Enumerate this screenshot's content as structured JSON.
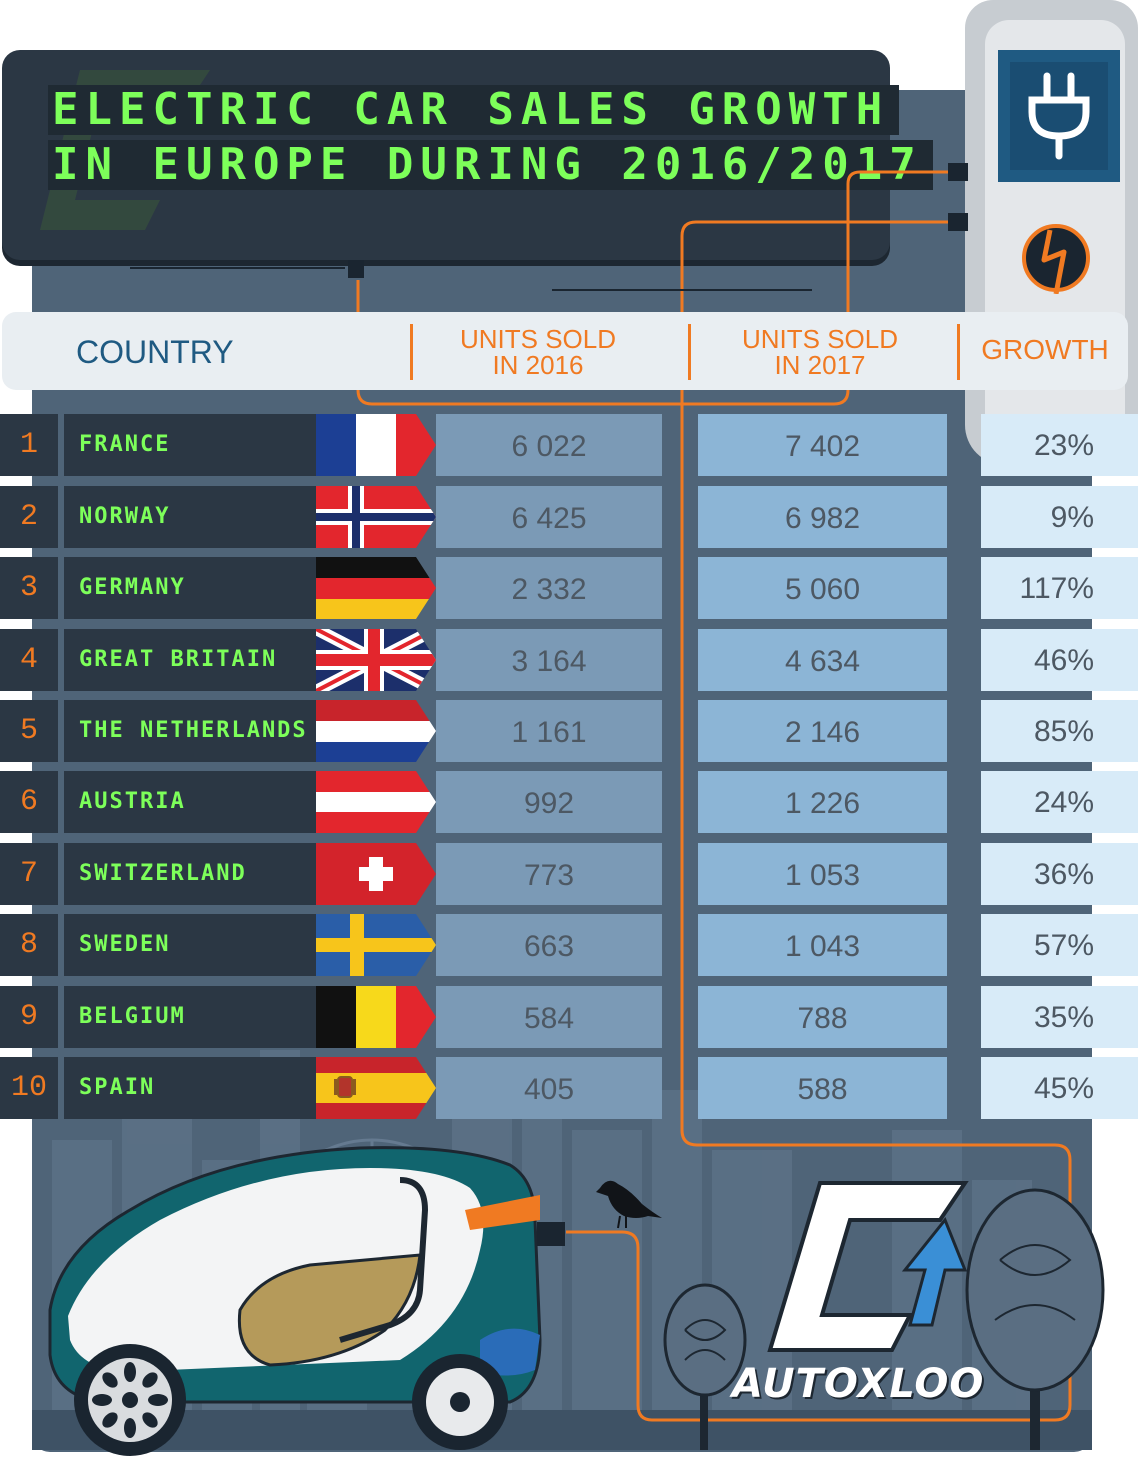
{
  "title": {
    "line1": "ELECTRIC CAR SALES GROWTH",
    "line2": "IN EUROPE DURING 2016/2017"
  },
  "headers": {
    "country": "COUNTRY",
    "units_2016": "UNITS SOLD\nIN 2016",
    "units_2017": "UNITS SOLD\nIN 2017",
    "growth": "GROWTH"
  },
  "rows": [
    {
      "rank": "1",
      "country": "FRANCE",
      "units_2016": "6 022",
      "units_2017": "7 402",
      "growth": "23%",
      "flag": "france-flag"
    },
    {
      "rank": "2",
      "country": "NORWAY",
      "units_2016": "6 425",
      "units_2017": "6 982",
      "growth": "9%",
      "flag": "norway-flag"
    },
    {
      "rank": "3",
      "country": "GERMANY",
      "units_2016": "2 332",
      "units_2017": "5 060",
      "growth": "117%",
      "flag": "germany-flag"
    },
    {
      "rank": "4",
      "country": "GREAT BRITAIN",
      "units_2016": "3 164",
      "units_2017": "4 634",
      "growth": "46%",
      "flag": "uk-flag"
    },
    {
      "rank": "5",
      "country": "THE NETHERLANDS",
      "units_2016": "1 161",
      "units_2017": "2 146",
      "growth": "85%",
      "flag": "netherlands-flag"
    },
    {
      "rank": "6",
      "country": "AUSTRIA",
      "units_2016": "992",
      "units_2017": "1 226",
      "growth": "24%",
      "flag": "austria-flag"
    },
    {
      "rank": "7",
      "country": "SWITZERLAND",
      "units_2016": "773",
      "units_2017": "1 053",
      "growth": "36%",
      "flag": "switzerland-flag"
    },
    {
      "rank": "8",
      "country": "SWEDEN",
      "units_2016": "663",
      "units_2017": "1 043",
      "growth": "57%",
      "flag": "sweden-flag"
    },
    {
      "rank": "9",
      "country": "BELGIUM",
      "units_2016": "584",
      "units_2017": "788",
      "growth": "35%",
      "flag": "belgium-flag"
    },
    {
      "rank": "10",
      "country": "SPAIN",
      "units_2016": "405",
      "units_2017": "588",
      "growth": "45%",
      "flag": "spain-flag"
    }
  ],
  "brand": {
    "name": "AUTOXLOO"
  },
  "colors": {
    "display_text": "#7dff5a",
    "accent": "#f07a22",
    "board": "#2b3744",
    "backdrop": "#4f6478",
    "plug_blue": "#1f5a82"
  },
  "icons": [
    "plug-icon",
    "lightning-bolt-icon",
    "autoxloo-logo",
    "electric-car-illustration",
    "raven-illustration",
    "tree-illustration"
  ]
}
